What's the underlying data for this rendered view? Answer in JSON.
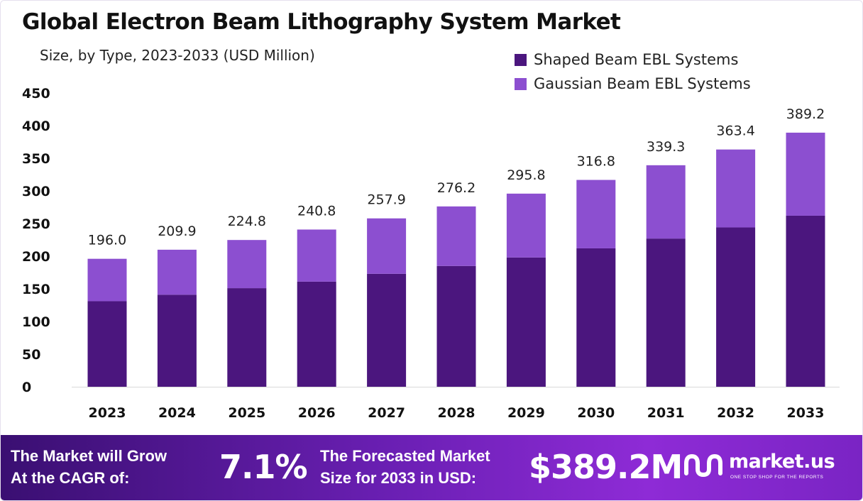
{
  "colors": {
    "shaped": "#4b167e",
    "gaussian": "#8c4fd0",
    "footer_start": "#3a0f72",
    "footer_end": "#8e2bd6",
    "text": "#111111"
  },
  "chart_data": {
    "type": "bar",
    "stacked": true,
    "title": "Global Electron Beam Lithography System Market",
    "subtitle": "Size, by Type, 2023-2033 (USD Million)",
    "categories": [
      "2023",
      "2024",
      "2025",
      "2026",
      "2027",
      "2028",
      "2029",
      "2030",
      "2031",
      "2032",
      "2033"
    ],
    "series": [
      {
        "name": "Shaped Beam EBL Systems",
        "color": "#4b167e",
        "values": [
          131,
          141,
          151,
          161,
          173,
          185,
          198,
          212,
          227,
          244,
          262
        ]
      },
      {
        "name": "Gaussian Beam EBL Systems",
        "color": "#8c4fd0",
        "values": [
          65,
          68.9,
          73.8,
          79.8,
          84.9,
          91.2,
          97.8,
          104.8,
          112.3,
          119.4,
          127.2
        ]
      }
    ],
    "totals": [
      "196.0",
      "209.9",
      "224.8",
      "240.8",
      "257.9",
      "276.2",
      "295.8",
      "316.8",
      "339.3",
      "363.4",
      "389.2"
    ],
    "ylim": [
      0,
      450
    ],
    "yticks": [
      0,
      50,
      100,
      150,
      200,
      250,
      300,
      350,
      400,
      450
    ],
    "grid": false,
    "legend_position": "top-right"
  },
  "footer": {
    "cagr_label_line1": "The Market will Grow",
    "cagr_label_line2": "At the CAGR of:",
    "cagr_value": "7.1%",
    "forecast_label_line1": "The Forecasted Market",
    "forecast_label_line2": "Size for 2033 in USD:",
    "forecast_value": "$389.2M",
    "brand_name": "market.us",
    "brand_tagline": "ONE STOP SHOP FOR THE REPORTS",
    "logo_icon": "market-us-logo-icon"
  }
}
